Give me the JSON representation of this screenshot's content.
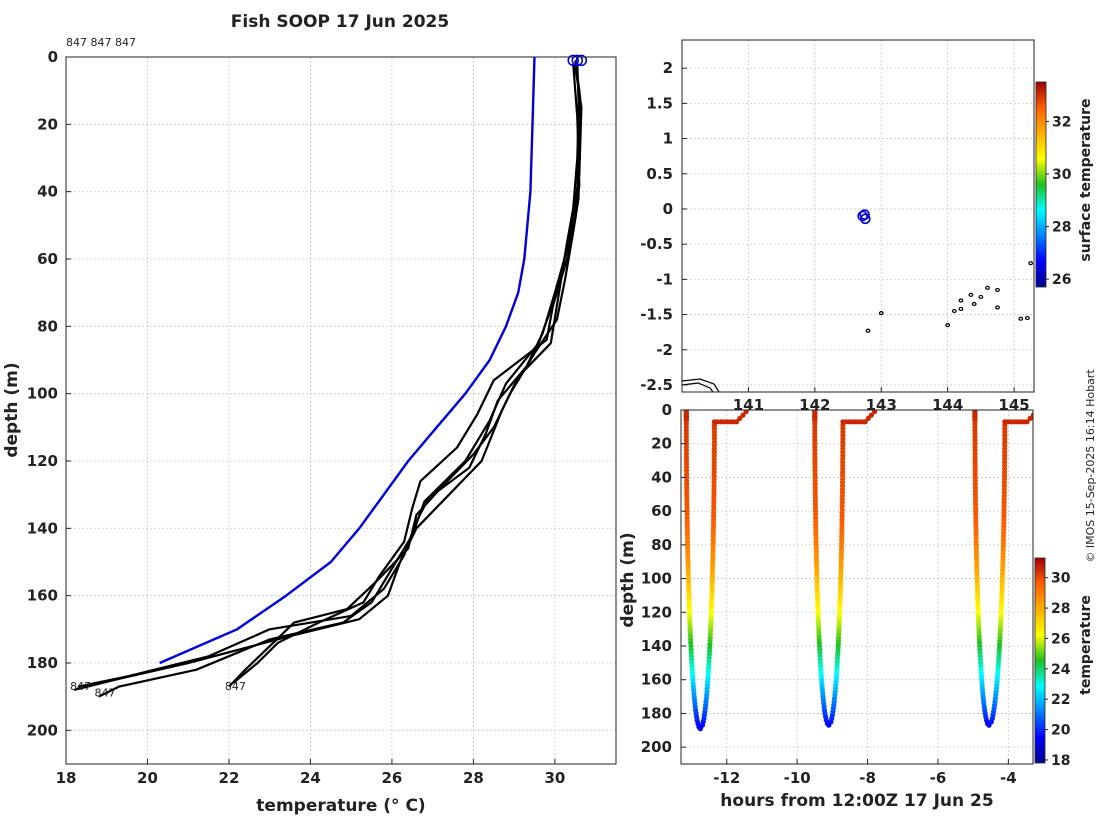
{
  "figure": {
    "title": "Fish SOOP 17 Jun 2025",
    "credit": "© IMOS 15-Sep-2025 16:14 Hobart"
  },
  "chart_data": [
    {
      "type": "line",
      "id": "profiles",
      "xlabel": "temperature (° C)",
      "ylabel": "depth (m)",
      "xlim": [
        18,
        31.5
      ],
      "ylim": [
        210,
        0
      ],
      "xticks": [
        18,
        20,
        22,
        24,
        26,
        28,
        30
      ],
      "yticks": [
        0,
        20,
        40,
        60,
        80,
        100,
        120,
        140,
        160,
        180,
        200
      ],
      "top_label": "847 847 847",
      "profile_labels": [
        {
          "text": "847",
          "x": 18.1,
          "y": 188
        },
        {
          "text": "847",
          "x": 18.7,
          "y": 190
        },
        {
          "text": "847",
          "x": 21.9,
          "y": 188
        }
      ],
      "series": [
        {
          "name": "climatology",
          "color": "#0000dd",
          "points": [
            [
              29.5,
              0
            ],
            [
              29.45,
              20
            ],
            [
              29.4,
              40
            ],
            [
              29.25,
              60
            ],
            [
              29.1,
              70
            ],
            [
              28.8,
              80
            ],
            [
              28.4,
              90
            ],
            [
              27.8,
              100
            ],
            [
              27.1,
              110
            ],
            [
              26.4,
              120
            ],
            [
              25.8,
              130
            ],
            [
              25.2,
              140
            ],
            [
              24.5,
              150
            ],
            [
              23.4,
              160
            ],
            [
              22.2,
              170
            ],
            [
              20.3,
              180
            ]
          ]
        },
        {
          "name": "profile-1",
          "color": "#000000",
          "points": [
            [
              30.5,
              2
            ],
            [
              30.6,
              10
            ],
            [
              30.55,
              30
            ],
            [
              30.45,
              45
            ],
            [
              30.3,
              55
            ],
            [
              30.1,
              70
            ],
            [
              29.9,
              85
            ],
            [
              29.1,
              95
            ],
            [
              28.7,
              105
            ],
            [
              28.2,
              120
            ],
            [
              27.4,
              130
            ],
            [
              26.6,
              140
            ],
            [
              26.2,
              150
            ],
            [
              25.9,
              160
            ],
            [
              25.2,
              167
            ],
            [
              23.5,
              172
            ],
            [
              21.0,
              180
            ],
            [
              19.2,
              185
            ],
            [
              18.2,
              188
            ]
          ]
        },
        {
          "name": "profile-2",
          "color": "#000000",
          "points": [
            [
              30.5,
              3
            ],
            [
              30.65,
              15
            ],
            [
              30.6,
              35
            ],
            [
              30.4,
              50
            ],
            [
              30.2,
              62
            ],
            [
              29.9,
              75
            ],
            [
              29.6,
              85
            ],
            [
              28.8,
              97
            ],
            [
              28.4,
              108
            ],
            [
              27.8,
              120
            ],
            [
              26.8,
              132
            ],
            [
              26.5,
              142
            ],
            [
              26.0,
              152
            ],
            [
              25.5,
              162
            ],
            [
              24.8,
              168
            ],
            [
              23.0,
              173
            ],
            [
              21.2,
              182
            ],
            [
              19.3,
              187
            ],
            [
              18.8,
              190
            ]
          ]
        },
        {
          "name": "profile-3",
          "color": "#000000",
          "points": [
            [
              30.55,
              2
            ],
            [
              30.6,
              20
            ],
            [
              30.55,
              40
            ],
            [
              30.35,
              55
            ],
            [
              30.0,
              70
            ],
            [
              29.7,
              82
            ],
            [
              29.3,
              92
            ],
            [
              28.6,
              102
            ],
            [
              28.3,
              112
            ],
            [
              27.9,
              122
            ],
            [
              26.9,
              131
            ],
            [
              26.6,
              138
            ],
            [
              26.3,
              148
            ],
            [
              25.8,
              158
            ],
            [
              25.0,
              166
            ],
            [
              23.0,
              170
            ],
            [
              21.5,
              178
            ],
            [
              19.5,
              184
            ],
            [
              18.3,
              187
            ]
          ]
        },
        {
          "name": "profile-4",
          "color": "#000000",
          "points": [
            [
              30.5,
              1
            ],
            [
              30.62,
              12
            ],
            [
              30.58,
              42
            ],
            [
              30.45,
              52
            ],
            [
              30.25,
              66
            ],
            [
              30.05,
              78
            ],
            [
              29.5,
              88
            ],
            [
              28.9,
              100
            ],
            [
              28.5,
              110
            ],
            [
              28.0,
              118
            ],
            [
              27.2,
              128
            ],
            [
              26.6,
              136
            ],
            [
              26.4,
              146
            ],
            [
              25.6,
              156
            ],
            [
              24.9,
              164
            ],
            [
              23.6,
              168
            ],
            [
              23.0,
              175
            ],
            [
              22.4,
              182
            ],
            [
              22.0,
              187
            ]
          ]
        },
        {
          "name": "profile-5",
          "color": "#000000",
          "points": [
            [
              30.45,
              2
            ],
            [
              30.55,
              18
            ],
            [
              30.6,
              38
            ],
            [
              30.5,
              48
            ],
            [
              30.3,
              60
            ],
            [
              29.95,
              74
            ],
            [
              29.8,
              84
            ],
            [
              28.5,
              96
            ],
            [
              28.1,
              106
            ],
            [
              27.6,
              116
            ],
            [
              26.7,
              126
            ],
            [
              26.5,
              134
            ],
            [
              26.3,
              144
            ],
            [
              25.7,
              154
            ],
            [
              25.3,
              162
            ],
            [
              24.2,
              168
            ],
            [
              23.2,
              174
            ],
            [
              22.7,
              180
            ],
            [
              22.1,
              186
            ]
          ]
        }
      ]
    },
    {
      "type": "scatter",
      "id": "map",
      "xlim": [
        140.0,
        145.3
      ],
      "ylim": [
        -2.6,
        2.4
      ],
      "yticks": [
        2,
        1.5,
        1,
        0.5,
        0,
        -0.5,
        -1,
        -1.5,
        -2,
        -2.5
      ],
      "yticklabels": [
        "2",
        "1.5",
        "1",
        "0.5",
        "0",
        "-0.5",
        "-1",
        "-1.5",
        "-2",
        "-2.5"
      ],
      "xticks": [
        141,
        142,
        143,
        144,
        145
      ],
      "xticklabels": [
        "141",
        "142",
        "143",
        "144",
        "145"
      ],
      "colorbar_label": "surface temperature",
      "colorbar_range": [
        25.7,
        33.5
      ],
      "colorbar_ticks": [
        26,
        28,
        30,
        32
      ],
      "stations": [
        [
          142.72,
          -0.1
        ],
        [
          142.75,
          -0.08
        ],
        [
          142.76,
          -0.14
        ]
      ],
      "islands": [
        [
          142.8,
          -1.73
        ],
        [
          143.0,
          -1.48
        ],
        [
          144.0,
          -1.65
        ],
        [
          144.1,
          -1.45
        ],
        [
          144.2,
          -1.3
        ],
        [
          144.35,
          -1.22
        ],
        [
          144.5,
          -1.25
        ],
        [
          144.6,
          -1.12
        ],
        [
          144.75,
          -1.15
        ],
        [
          144.75,
          -1.4
        ],
        [
          144.4,
          -1.35
        ],
        [
          144.2,
          -1.42
        ],
        [
          145.1,
          -1.56
        ],
        [
          145.2,
          -1.55
        ],
        [
          145.25,
          -0.77
        ]
      ]
    },
    {
      "type": "scatter",
      "id": "sections",
      "xlabel": "hours from 12:00Z 17 Jun 25",
      "ylabel": "depth (m)",
      "xlim": [
        -13.3,
        -3.3
      ],
      "ylim": [
        210,
        0
      ],
      "xticks": [
        -12,
        -10,
        -8,
        -6,
        -4
      ],
      "yticks": [
        0,
        20,
        40,
        60,
        80,
        100,
        120,
        140,
        160,
        180,
        200
      ],
      "colorbar_label": "temperature",
      "colorbar_range": [
        17.8,
        31.3
      ],
      "colorbar_ticks": [
        18,
        20,
        22,
        24,
        26,
        28,
        30
      ],
      "casts": [
        {
          "x_start": -13.15,
          "x_bottom": -12.75,
          "x_end": -12.35,
          "max_depth": 189
        },
        {
          "x_start": -9.5,
          "x_bottom": -9.1,
          "x_end": -8.7,
          "max_depth": 187
        },
        {
          "x_start": -4.95,
          "x_bottom": -4.55,
          "x_end": -4.1,
          "max_depth": 187
        }
      ]
    }
  ]
}
